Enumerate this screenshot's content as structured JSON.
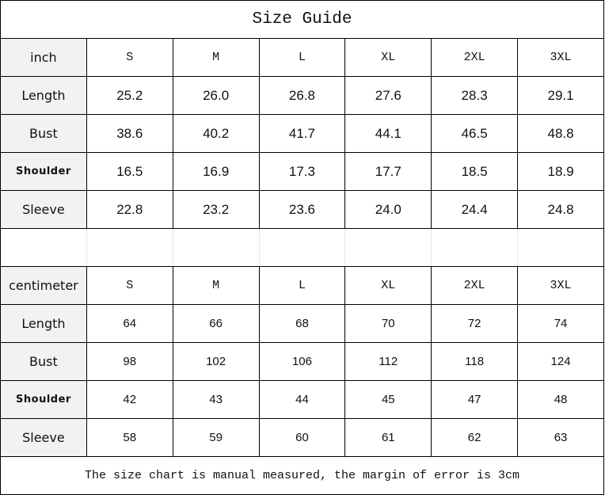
{
  "title": "Size Guide",
  "sizes": [
    "S",
    "M",
    "L",
    "XL",
    "2XL",
    "3XL"
  ],
  "inch": {
    "unit_label": "inch",
    "rows": [
      {
        "label": "Length",
        "values": [
          "25.2",
          "26.0",
          "26.8",
          "27.6",
          "28.3",
          "29.1"
        ]
      },
      {
        "label": "Bust",
        "values": [
          "38.6",
          "40.2",
          "41.7",
          "44.1",
          "46.5",
          "48.8"
        ]
      },
      {
        "label": "Shoulder",
        "values": [
          "16.5",
          "16.9",
          "17.3",
          "17.7",
          "18.5",
          "18.9"
        ]
      },
      {
        "label": "Sleeve",
        "values": [
          "22.8",
          "23.2",
          "23.6",
          "24.0",
          "24.4",
          "24.8"
        ]
      }
    ]
  },
  "cm": {
    "unit_label": "centimeter",
    "rows": [
      {
        "label": "Length",
        "values": [
          "64",
          "66",
          "68",
          "70",
          "72",
          "74"
        ]
      },
      {
        "label": "Bust",
        "values": [
          "98",
          "102",
          "106",
          "112",
          "118",
          "124"
        ]
      },
      {
        "label": "Shoulder",
        "values": [
          "42",
          "43",
          "44",
          "45",
          "47",
          "48"
        ]
      },
      {
        "label": "Sleeve",
        "values": [
          "58",
          "59",
          "60",
          "61",
          "62",
          "63"
        ]
      }
    ]
  },
  "note": "The size chart is manual measured, the margin of error is 3cm"
}
